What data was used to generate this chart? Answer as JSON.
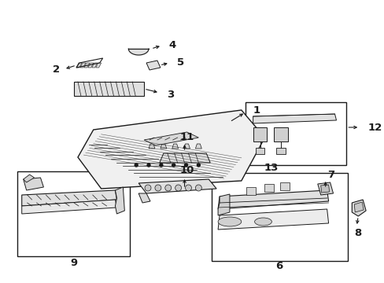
{
  "bg_color": "#ffffff",
  "line_color": "#1a1a1a",
  "label_color": "#1a1a1a",
  "fig_w": 4.89,
  "fig_h": 3.6,
  "dpi": 100,
  "parts_font": 9.5
}
